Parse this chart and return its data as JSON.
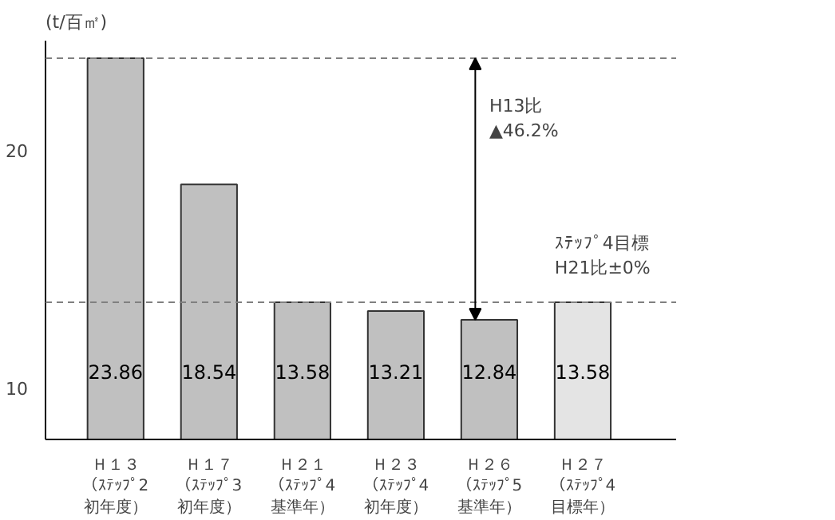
{
  "chart_data": {
    "type": "bar",
    "ylabel": "(t/百㎡)",
    "categories": [
      "Ｈ１３（ｽﾃｯﾌﾟ2初年度）",
      "Ｈ１７（ｽﾃｯﾌﾟ3初年度）",
      "Ｈ２１（ｽﾃｯﾌﾟ4基準年）",
      "Ｈ２３（ｽﾃｯﾌﾟ4初年度）",
      "Ｈ２６（ｽﾃｯﾌﾟ5基準年）",
      "Ｈ２７（ｽﾃｯﾌﾟ4目標年）"
    ],
    "values": [
      23.86,
      18.54,
      13.58,
      13.21,
      12.84,
      13.58
    ],
    "colors": [
      "#c0c0c0",
      "#c0c0c0",
      "#c0c0c0",
      "#c0c0c0",
      "#c0c0c0",
      "#e4e4e4"
    ],
    "ylim": [
      7.8,
      24.6
    ],
    "yticks": [
      10,
      20
    ],
    "grid": false,
    "data_labels": true,
    "ref_lines": [
      {
        "axis": "y",
        "value": 23.86,
        "color": "#808080",
        "line_style": "dashed"
      },
      {
        "axis": "y",
        "value": 13.58,
        "color": "#808080",
        "line_style": "dashed"
      }
    ],
    "annotations": [
      "H13比\n▲46.2%",
      "ｽﾃｯﾌﾟ4目標\nH21比±0%"
    ]
  }
}
